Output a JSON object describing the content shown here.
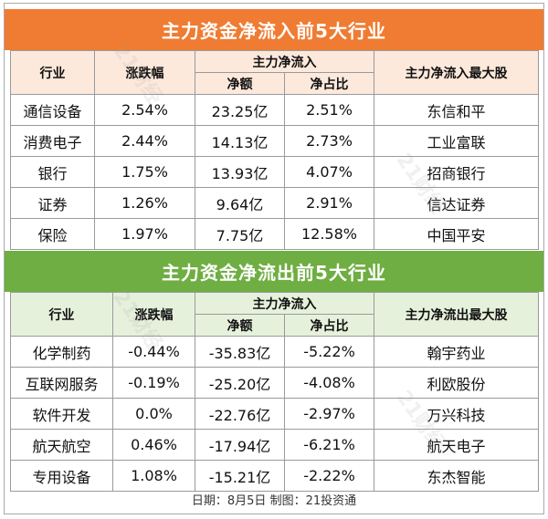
{
  "inflow": {
    "title": "主力资金净流入前5大行业",
    "headers": {
      "industry": "行业",
      "change": "涨跌幅",
      "flow_group": "主力净流入",
      "net_amount": "净额",
      "net_ratio": "净占比",
      "top_stock": "主力净流入最大股"
    },
    "rows": [
      {
        "industry": "通信设备",
        "change": "2.54%",
        "net_amount": "23.25亿",
        "net_ratio": "2.51%",
        "top_stock": "东信和平"
      },
      {
        "industry": "消费电子",
        "change": "2.44%",
        "net_amount": "14.13亿",
        "net_ratio": "2.73%",
        "top_stock": "工业富联"
      },
      {
        "industry": "银行",
        "change": "1.75%",
        "net_amount": "13.93亿",
        "net_ratio": "4.07%",
        "top_stock": "招商银行"
      },
      {
        "industry": "证券",
        "change": "1.26%",
        "net_amount": "9.64亿",
        "net_ratio": "2.91%",
        "top_stock": "信达证券"
      },
      {
        "industry": "保险",
        "change": "1.97%",
        "net_amount": "7.75亿",
        "net_ratio": "12.58%",
        "top_stock": "中国平安"
      }
    ],
    "color": "#ef7c32"
  },
  "outflow": {
    "title": "主力资金净流出前5大行业",
    "headers": {
      "industry": "行业",
      "change": "涨跌幅",
      "flow_group": "主力净流入",
      "net_amount": "净额",
      "net_ratio": "净占比",
      "top_stock": "主力净流出最大股"
    },
    "rows": [
      {
        "industry": "化学制药",
        "change": "-0.44%",
        "net_amount": "-35.83亿",
        "net_ratio": "-5.22%",
        "top_stock": "翰宇药业"
      },
      {
        "industry": "互联网服务",
        "change": "-0.19%",
        "net_amount": "-25.20亿",
        "net_ratio": "-4.08%",
        "top_stock": "利欧股份"
      },
      {
        "industry": "软件开发",
        "change": "0.0%",
        "net_amount": "-22.76亿",
        "net_ratio": "-2.97%",
        "top_stock": "万兴科技"
      },
      {
        "industry": "航天航空",
        "change": "0.46%",
        "net_amount": "-17.94亿",
        "net_ratio": "-6.21%",
        "top_stock": "航天电子"
      },
      {
        "industry": "专用设备",
        "change": "1.08%",
        "net_amount": "-15.21亿",
        "net_ratio": "-2.22%",
        "top_stock": "东杰智能"
      }
    ],
    "color": "#6fae42"
  },
  "footer": "日期：8月5日 制图：21投资通",
  "watermark": "21财经"
}
